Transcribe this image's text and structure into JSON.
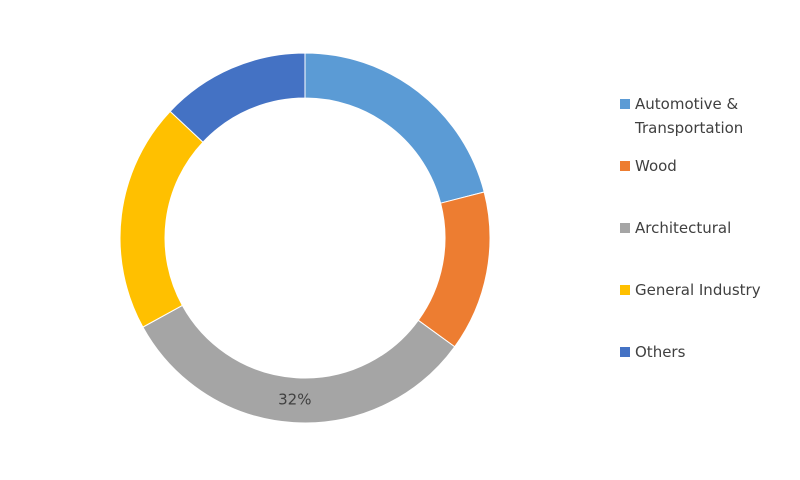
{
  "chart_data": {
    "type": "donut",
    "categories": [
      "Automotive & Transportation",
      "Wood",
      "Architectural",
      "General Industry",
      "Others"
    ],
    "values": [
      21,
      14,
      32,
      20,
      13
    ],
    "value_labels": [
      null,
      null,
      "32%",
      null,
      null
    ],
    "colors": [
      "#5b9bd5",
      "#ed7d31",
      "#a5a5a5",
      "#ffc000",
      "#4472c4"
    ],
    "legend": "right"
  }
}
